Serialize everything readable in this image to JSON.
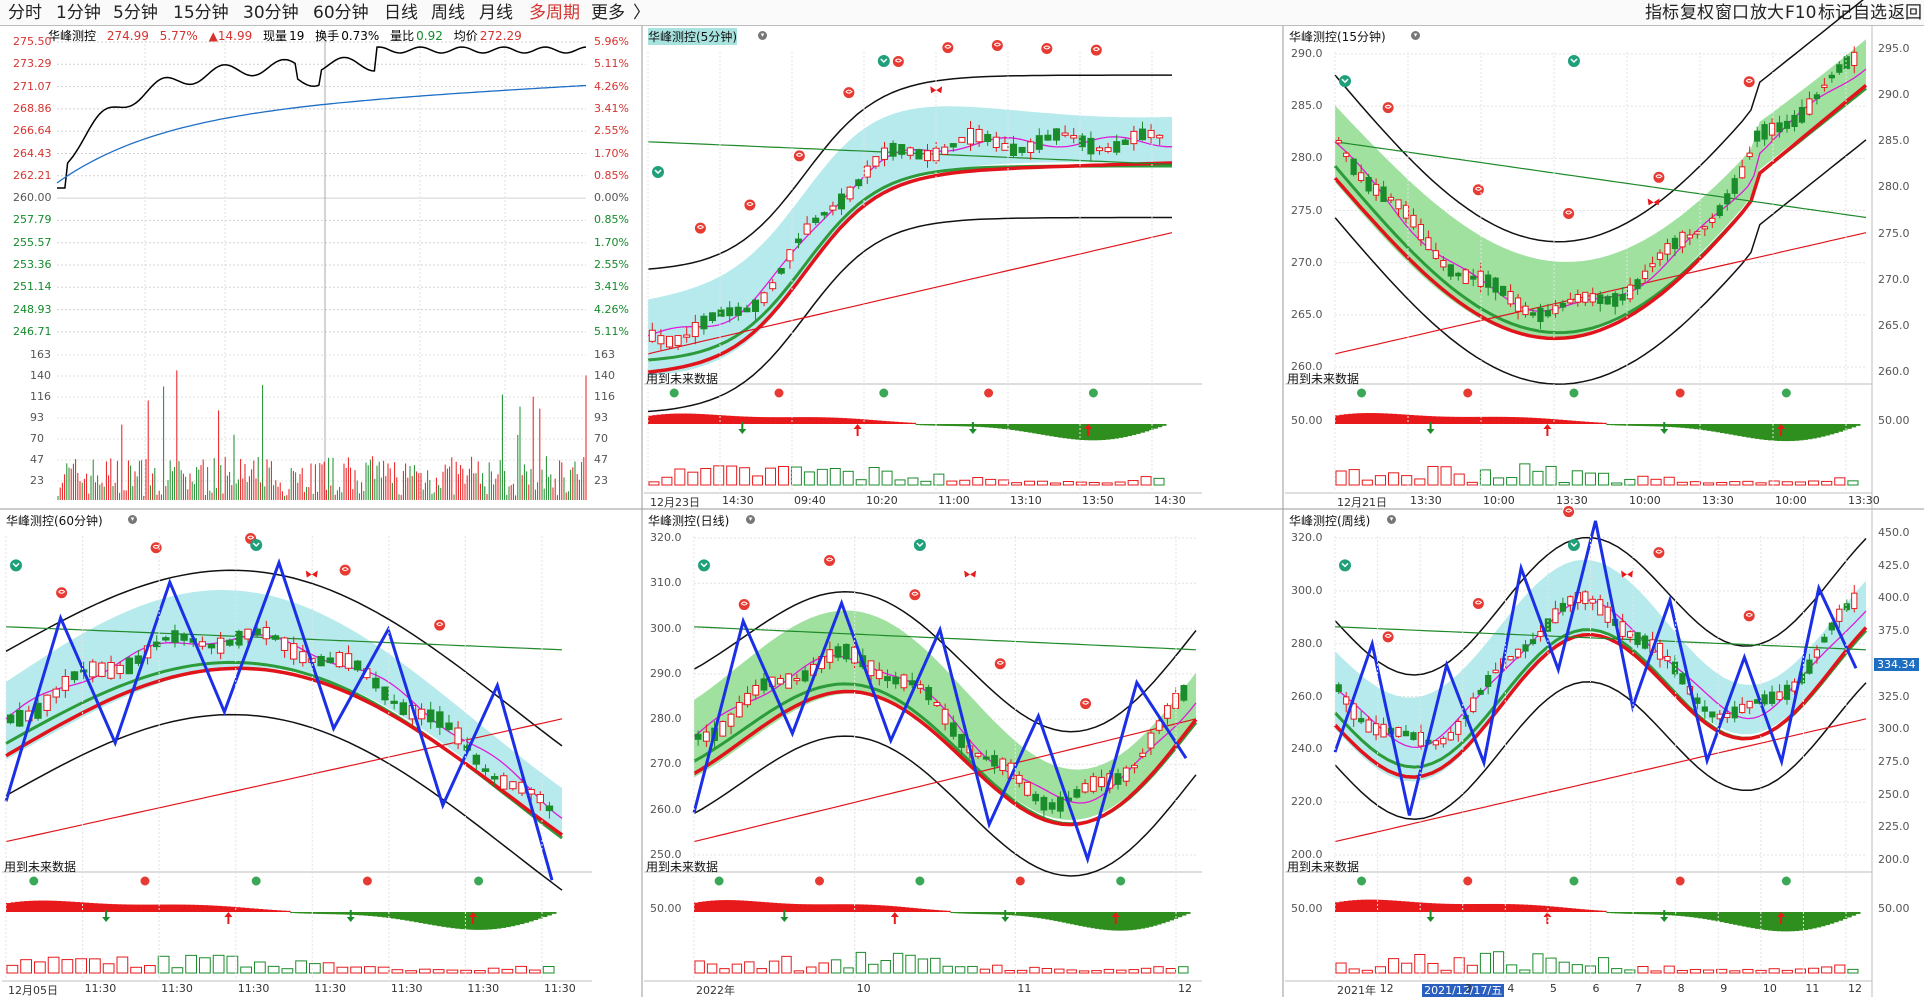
{
  "toolbar": {
    "tabs": [
      {
        "label": "分时"
      },
      {
        "label": "1分钟"
      },
      {
        "label": "5分钟"
      },
      {
        "label": "15分钟"
      },
      {
        "label": "30分钟"
      },
      {
        "label": "60分钟"
      },
      {
        "label": "日线"
      },
      {
        "label": "周线"
      },
      {
        "label": "月线"
      },
      {
        "label": "多周期"
      },
      {
        "label": "更多"
      }
    ],
    "more_arrow": "〉",
    "right_tools": [
      {
        "label": "指标"
      },
      {
        "label": "复权"
      },
      {
        "label": "窗口"
      },
      {
        "label": "放大"
      },
      {
        "label": "F10"
      },
      {
        "label": "标记"
      },
      {
        "label": "自选"
      },
      {
        "label": "返回"
      }
    ]
  },
  "intraday": {
    "name": "华峰测控",
    "price": "274.99",
    "pct": "5.77%",
    "change": "▲14.99",
    "volume_label": "现量",
    "volume": "19",
    "turnover_label": "换手",
    "turnover": "0.73%",
    "ratio_label": "量比",
    "ratio": "0.92",
    "avg_label": "均价",
    "avg": "272.29",
    "left_scale": [
      "275.50",
      "273.29",
      "271.07",
      "268.86",
      "266.64",
      "264.43",
      "262.21",
      "260.00",
      "257.79",
      "255.57",
      "253.36",
      "251.14",
      "248.93",
      "246.71"
    ],
    "right_scale": [
      "5.96%",
      "5.11%",
      "4.26%",
      "3.41%",
      "2.55%",
      "1.70%",
      "0.85%",
      "0.00%",
      "0.85%",
      "1.70%",
      "2.55%",
      "3.41%",
      "4.26%",
      "5.11%"
    ],
    "vol_scale": [
      "163",
      "140",
      "116",
      "93",
      "70",
      "47",
      "23"
    ]
  },
  "panels": [
    {
      "title": "华峰测控(5分钟)",
      "y_scale": [],
      "sub_label": "用到未来数据",
      "sub_scale": [],
      "x_labels": [
        "12月23日",
        "14:30",
        "09:40",
        "10:20",
        "11:00",
        "13:10",
        "13:50",
        "14:30"
      ]
    },
    {
      "title": "华峰测控(15分钟)",
      "y_scale": [
        "290.0",
        "285.0",
        "280.0",
        "275.0",
        "270.0",
        "265.0",
        "260.0"
      ],
      "sub_label": "用到未来数据",
      "sub_scale": [
        "50.00"
      ],
      "x_labels": [
        "12月21日",
        "13:30",
        "10:00",
        "13:30",
        "10:00",
        "13:30",
        "10:00",
        "13:30"
      ],
      "right_scale": [
        "295.0",
        "290.0",
        "285.0",
        "280.0",
        "275.0",
        "270.0",
        "265.0",
        "260.0",
        "50.00"
      ]
    },
    {
      "title": "华峰测控(60分钟)",
      "y_scale": [],
      "sub_label": "用到未来数据",
      "sub_scale": [],
      "x_labels": [
        "12月05日",
        "11:30",
        "11:30",
        "11:30",
        "11:30",
        "11:30",
        "11:30",
        "11:30"
      ]
    },
    {
      "title": "华峰测控(日线)",
      "y_scale": [
        "320.0",
        "310.0",
        "300.0",
        "290.0",
        "280.0",
        "270.0",
        "260.0",
        "250.0"
      ],
      "sub_label": "用到未来数据",
      "sub_scale": [
        "50.00"
      ],
      "x_labels": [
        "2022年",
        "10",
        "11",
        "12"
      ]
    },
    {
      "title": "华峰测控(周线)",
      "y_scale": [
        "320.0",
        "300.0",
        "280.0",
        "260.0",
        "240.0",
        "220.0",
        "200.0"
      ],
      "sub_label": "用到未来数据",
      "sub_scale": [
        "50.00"
      ],
      "x_labels": [
        "2021年",
        "12",
        "2021/12/17/五",
        "3",
        "4",
        "5",
        "6",
        "7",
        "8",
        "9",
        "10",
        "11",
        "12"
      ],
      "right_scale": [
        "450.0",
        "425.0",
        "400.0",
        "375.0",
        "350.0",
        "325.0",
        "300.0",
        "275.0",
        "250.0",
        "225.0",
        "200.0",
        "50.00"
      ],
      "current_value": "334.34"
    }
  ],
  "colors": {
    "up": "#e8191b",
    "down": "#1a8c2b",
    "grid": "#c8c8c8",
    "zigzag": "#1b2fe6",
    "cloud_green": "#7fdc7f",
    "cloud_cyan": "#a6e6e8"
  }
}
